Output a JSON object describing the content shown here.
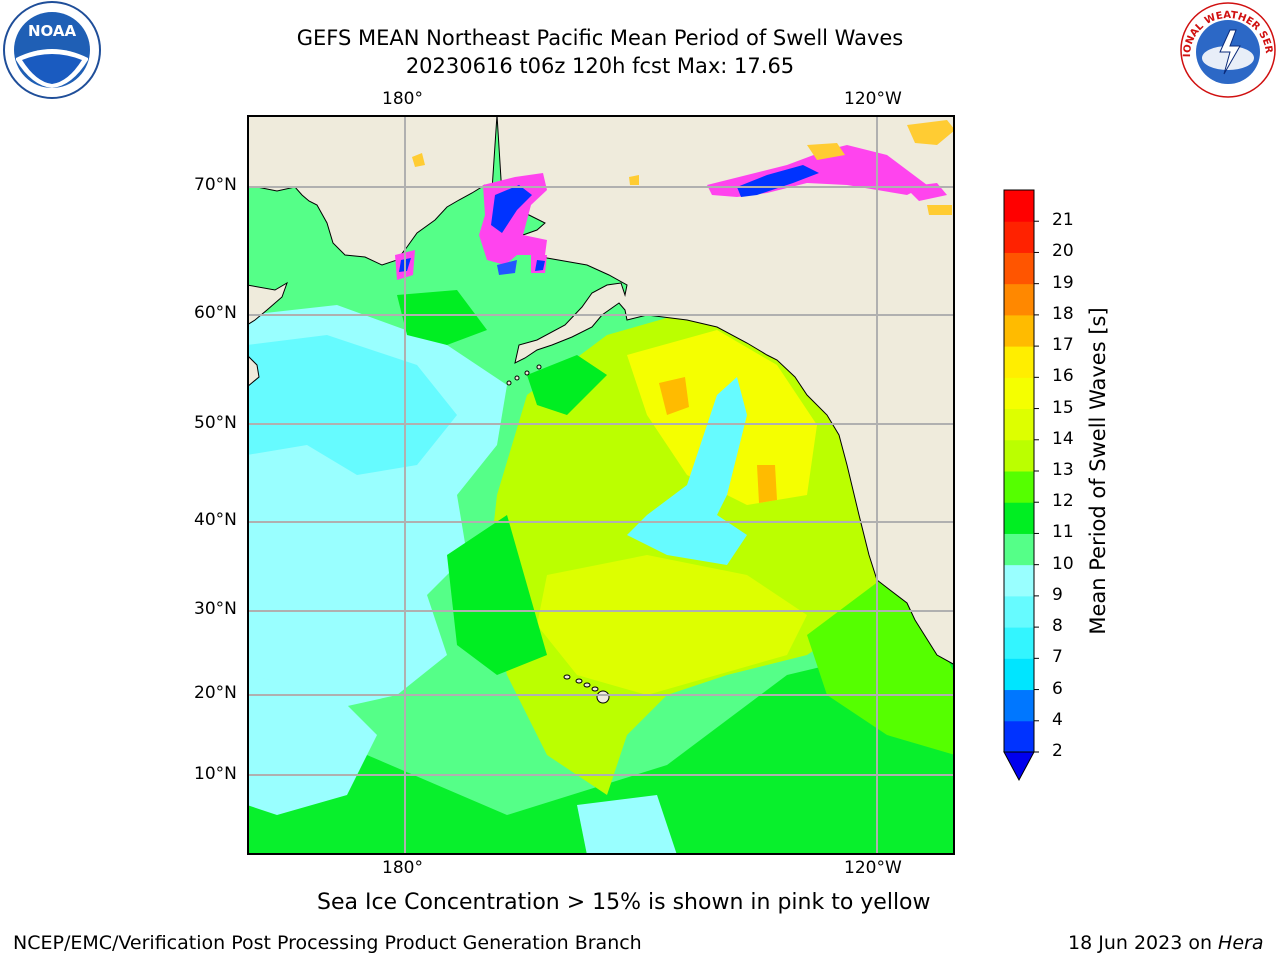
{
  "header": {
    "title_line1": "GEFS MEAN Northeast Pacific Mean Period of Swell Waves",
    "title_line2": "20230616 t06z 120h fcst   Max: 17.65"
  },
  "logos": {
    "left": "NOAA",
    "right_text": "NATIONAL WEATHER SERVICE"
  },
  "map": {
    "top_lon_labels": [
      "180°",
      "120°W"
    ],
    "bottom_lon_labels": [
      "180°",
      "120°W"
    ],
    "lat_labels": [
      "70°N",
      "60°N",
      "50°N",
      "40°N",
      "30°N",
      "20°N",
      "10°N"
    ],
    "colors": {
      "land": "#efebdc",
      "grid": "#b0b0b0",
      "coast": "#000000"
    }
  },
  "colorbar": {
    "label": "Mean Period of Swell Waves [s]",
    "ticks": [
      "2",
      "4",
      "6",
      "7",
      "8",
      "9",
      "10",
      "11",
      "12",
      "13",
      "14",
      "15",
      "16",
      "17",
      "18",
      "19",
      "20",
      "21"
    ],
    "colors": [
      "#0033ff",
      "#0077ff",
      "#00e5ff",
      "#33f5ff",
      "#66fbff",
      "#99ffff",
      "#55ff88",
      "#00ee22",
      "#55ff00",
      "#bbff00",
      "#ddff00",
      "#f5ff00",
      "#ffee00",
      "#ffbb00",
      "#ff8800",
      "#ff5500",
      "#ff2200",
      "#ff0000"
    ],
    "extend_color": "#0000ee"
  },
  "caption": "Sea Ice Concentration > 15% is shown in pink to yellow",
  "footer": {
    "left": "NCEP/EMC/Verification Post Processing Product Generation Branch",
    "right_date": "18 Jun 2023 on ",
    "right_machine": "Hera"
  }
}
